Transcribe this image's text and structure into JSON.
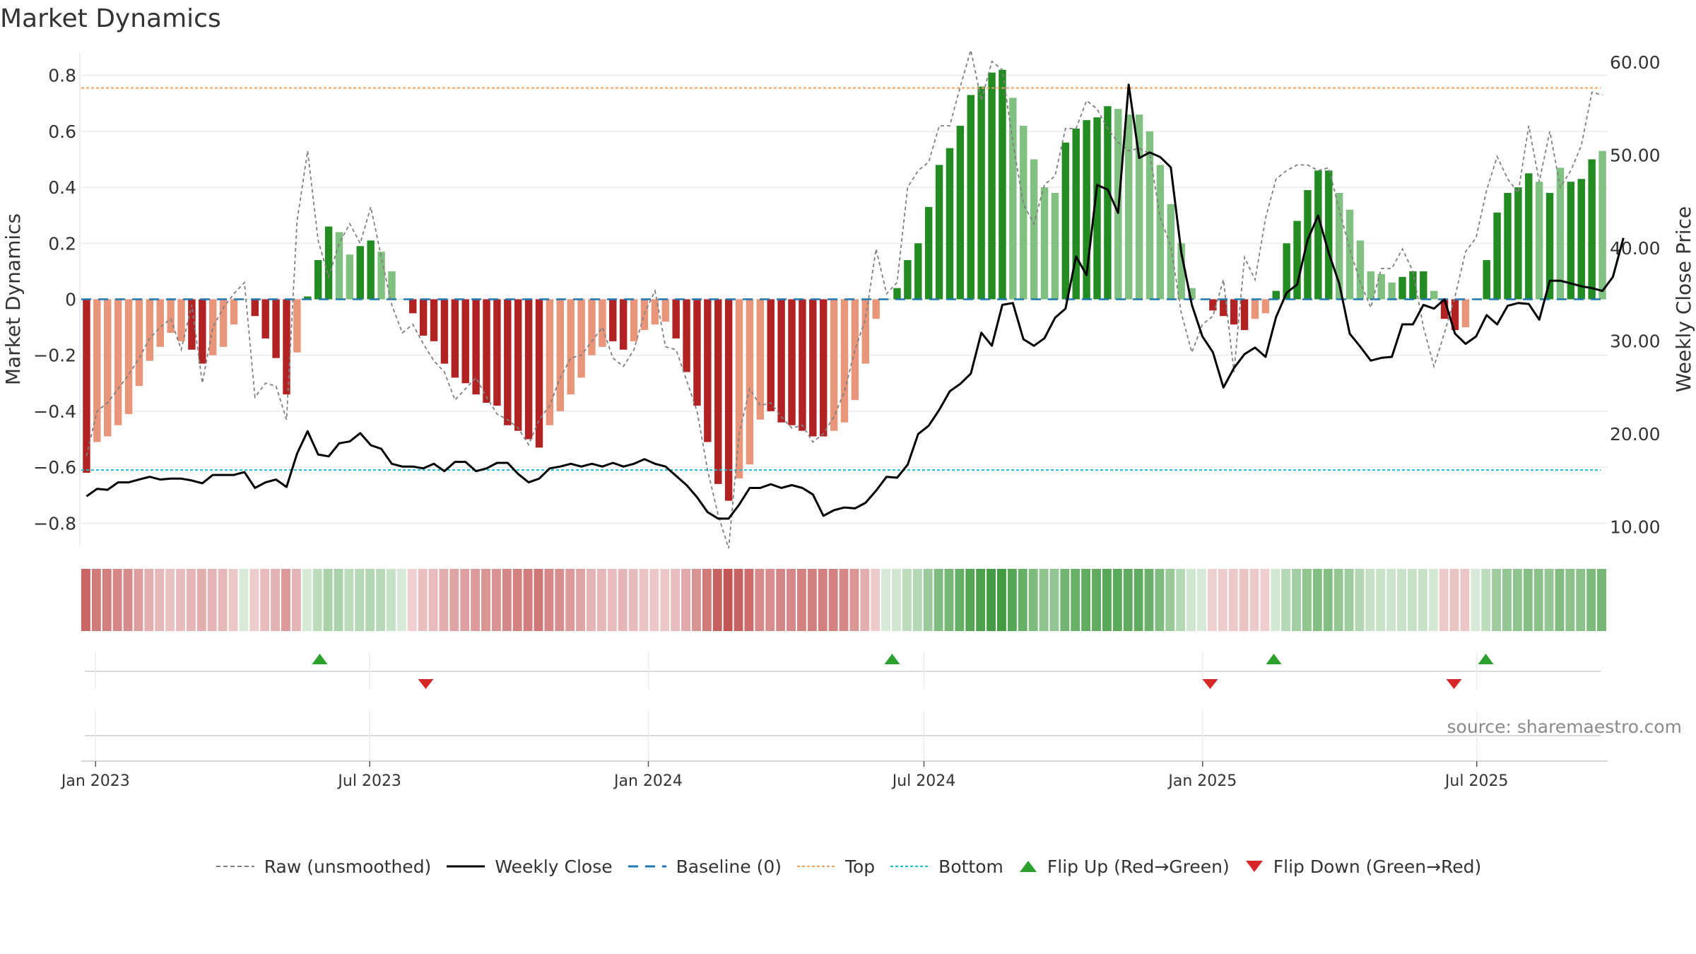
{
  "title": "Market Dynamics",
  "source": "source: sharemaestro.com",
  "colors": {
    "strong_green": "#228b22",
    "light_green": "#80c080",
    "strong_red": "#b22222",
    "light_red": "#e8957a",
    "close_line": "#000000",
    "raw_line": "#808080",
    "baseline": "#1f77b4",
    "top": "#f0a060",
    "bottom": "#17becf",
    "flip_up": "#2ca02c",
    "flip_down": "#d62728"
  },
  "legend": [
    {
      "label": "Raw (unsmoothed)",
      "icon": "dashed-gray-line"
    },
    {
      "label": "Weekly Close",
      "icon": "solid-black-line"
    },
    {
      "label": "Baseline (0)",
      "icon": "dashed-blue-line"
    },
    {
      "label": "Top",
      "icon": "dotted-orange-line"
    },
    {
      "label": "Bottom",
      "icon": "dotted-cyan-line"
    },
    {
      "label": "Flip Up (Red→Green)",
      "icon": "triangle-up-green"
    },
    {
      "label": "Flip Down (Green→Red)",
      "icon": "triangle-down-red"
    }
  ],
  "chart_data": {
    "type": "bar",
    "title": "Market Dynamics",
    "ylabel": "Market Dynamics",
    "y2label": "Weekly Close Price",
    "ylim": [
      -0.88,
      0.88
    ],
    "y2lim": [
      8.0,
      61.0
    ],
    "yticks": [
      {
        "value": 0.8,
        "label": "0.8"
      },
      {
        "value": 0.6,
        "label": "0.6"
      },
      {
        "value": 0.4,
        "label": "0.4"
      },
      {
        "value": 0.2,
        "label": "0.2"
      },
      {
        "value": 0,
        "label": "0"
      },
      {
        "value": -0.2,
        "label": "−0.2"
      },
      {
        "value": -0.4,
        "label": "−0.4"
      },
      {
        "value": -0.6,
        "label": "−0.6"
      },
      {
        "value": -0.8,
        "label": "−0.8"
      }
    ],
    "y2ticks": [
      {
        "value": 60,
        "label": "60.00"
      },
      {
        "value": 50,
        "label": "50.00"
      },
      {
        "value": 40,
        "label": "40.00"
      },
      {
        "value": 30,
        "label": "30.00"
      },
      {
        "value": 20,
        "label": "20.00"
      },
      {
        "value": 10,
        "label": "10.00"
      }
    ],
    "xticks": [
      {
        "date": "2023-01-01",
        "label": "Jan 2023"
      },
      {
        "date": "2023-07-01",
        "label": "Jul 2023"
      },
      {
        "date": "2024-01-01",
        "label": "Jan 2024"
      },
      {
        "date": "2024-07-01",
        "label": "Jul 2024"
      },
      {
        "date": "2025-01-01",
        "label": "Jan 2025"
      },
      {
        "date": "2025-07-01",
        "label": "Jul 2025"
      }
    ],
    "date_range": [
      "2022-12-26",
      "2025-09-22"
    ],
    "top_line": 0.755,
    "bottom_line": -0.61,
    "baseline": 0,
    "series": [
      {
        "name": "Market Dynamics",
        "kind": "bar",
        "values": [
          -0.62,
          -0.51,
          -0.49,
          -0.45,
          -0.41,
          -0.31,
          -0.22,
          -0.17,
          -0.12,
          -0.15,
          -0.18,
          -0.23,
          -0.2,
          -0.17,
          -0.09,
          0,
          -0.06,
          -0.14,
          -0.21,
          -0.34,
          -0.19,
          0.01,
          0.14,
          0.26,
          0.24,
          0.16,
          0.19,
          0.21,
          0.17,
          0.1,
          0,
          -0.05,
          -0.13,
          -0.15,
          -0.23,
          -0.28,
          -0.3,
          -0.34,
          -0.37,
          -0.38,
          -0.45,
          -0.47,
          -0.5,
          -0.53,
          -0.45,
          -0.4,
          -0.34,
          -0.28,
          -0.2,
          -0.17,
          -0.15,
          -0.18,
          -0.15,
          -0.11,
          -0.09,
          -0.08,
          -0.14,
          -0.26,
          -0.38,
          -0.51,
          -0.66,
          -0.72,
          -0.64,
          -0.59,
          -0.43,
          -0.4,
          -0.44,
          -0.45,
          -0.47,
          -0.49,
          -0.49,
          -0.47,
          -0.44,
          -0.36,
          -0.23,
          -0.07,
          0,
          0.04,
          0.14,
          0.2,
          0.33,
          0.48,
          0.54,
          0.62,
          0.73,
          0.76,
          0.81,
          0.82,
          0.72,
          0.62,
          0.5,
          0.4,
          0.38,
          0.56,
          0.61,
          0.64,
          0.65,
          0.69,
          0.68,
          0.66,
          0.66,
          0.6,
          0.48,
          0.34,
          0.2,
          0.04,
          0,
          -0.04,
          -0.06,
          -0.09,
          -0.11,
          -0.07,
          -0.05,
          0.03,
          0.2,
          0.28,
          0.39,
          0.46,
          0.46,
          0.38,
          0.32,
          0.21,
          0.1,
          0.09,
          0.06,
          0.08,
          0.1,
          0.1,
          0.03,
          -0.07,
          -0.11,
          -0.1,
          0,
          0.14,
          0.31,
          0.38,
          0.4,
          0.45,
          0.42,
          0.38,
          0.47,
          0.42,
          0.43,
          0.5,
          0.53
        ],
        "shades": [
          "S",
          "L",
          "L",
          "L",
          "L",
          "L",
          "L",
          "L",
          "L",
          "L",
          "S",
          "S",
          "L",
          "L",
          "L",
          "L",
          "S",
          "S",
          "S",
          "S",
          "L",
          "S",
          "S",
          "S",
          "L",
          "L",
          "S",
          "S",
          "L",
          "L",
          "L",
          "S",
          "S",
          "S",
          "S",
          "S",
          "S",
          "S",
          "S",
          "S",
          "S",
          "S",
          "S",
          "S",
          "L",
          "L",
          "L",
          "L",
          "L",
          "L",
          "S",
          "S",
          "L",
          "L",
          "L",
          "L",
          "S",
          "S",
          "S",
          "S",
          "S",
          "S",
          "L",
          "L",
          "L",
          "S",
          "S",
          "S",
          "S",
          "S",
          "S",
          "L",
          "L",
          "L",
          "L",
          "L",
          "S",
          "S",
          "S",
          "S",
          "S",
          "S",
          "S",
          "S",
          "S",
          "S",
          "S",
          "S",
          "L",
          "L",
          "L",
          "L",
          "L",
          "S",
          "S",
          "S",
          "S",
          "S",
          "L",
          "L",
          "L",
          "L",
          "L",
          "L",
          "L",
          "L",
          "L",
          "S",
          "S",
          "S",
          "S",
          "L",
          "L",
          "S",
          "S",
          "S",
          "S",
          "S",
          "S",
          "L",
          "L",
          "L",
          "L",
          "L",
          "L",
          "S",
          "S",
          "S",
          "L",
          "S",
          "S",
          "L",
          "L",
          "S",
          "S",
          "S",
          "S",
          "S",
          "L",
          "S",
          "L",
          "S",
          "S",
          "S"
        ]
      },
      {
        "name": "Raw (unsmoothed)",
        "kind": "line",
        "values": [
          -0.56,
          -0.4,
          -0.37,
          -0.32,
          -0.27,
          -0.21,
          -0.14,
          -0.1,
          -0.07,
          -0.18,
          -0.02,
          -0.3,
          -0.1,
          -0.03,
          0.02,
          0.06,
          -0.35,
          -0.3,
          -0.31,
          -0.43,
          0.28,
          0.53,
          0.21,
          0.08,
          0.2,
          0.27,
          0.2,
          0.33,
          0.15,
          -0.02,
          -0.12,
          -0.09,
          -0.16,
          -0.22,
          -0.26,
          -0.36,
          -0.32,
          -0.28,
          -0.35,
          -0.41,
          -0.43,
          -0.46,
          -0.52,
          -0.43,
          -0.38,
          -0.28,
          -0.21,
          -0.2,
          -0.15,
          -0.1,
          -0.21,
          -0.24,
          -0.18,
          -0.05,
          0.03,
          -0.17,
          -0.18,
          -0.29,
          -0.4,
          -0.61,
          -0.77,
          -0.89,
          -0.48,
          -0.32,
          -0.38,
          -0.37,
          -0.42,
          -0.46,
          -0.45,
          -0.51,
          -0.48,
          -0.42,
          -0.33,
          -0.18,
          -0.07,
          0.18,
          0.02,
          0.06,
          0.4,
          0.46,
          0.49,
          0.62,
          0.62,
          0.76,
          0.89,
          0.71,
          0.85,
          0.82,
          0.56,
          0.34,
          0.27,
          0.41,
          0.44,
          0.61,
          0.61,
          0.71,
          0.68,
          0.61,
          0.56,
          0.53,
          0.54,
          0.52,
          0.29,
          0.19,
          -0.05,
          -0.19,
          -0.09,
          -0.06,
          0.07,
          -0.26,
          0.15,
          0.07,
          0.29,
          0.43,
          0.46,
          0.48,
          0.48,
          0.46,
          0.47,
          0.32,
          0.18,
          0.06,
          -0.03,
          0.11,
          0.11,
          0.18,
          0.1,
          -0.1,
          -0.24,
          -0.12,
          0.01,
          0.17,
          0.22,
          0.39,
          0.51,
          0.43,
          0.38,
          0.62,
          0.42,
          0.6,
          0.4,
          0.46,
          0.55,
          0.74,
          0.73
        ]
      },
      {
        "name": "Weekly Close",
        "kind": "line",
        "axis": "right",
        "values": [
          13.3,
          14.1,
          14.0,
          14.8,
          14.8,
          15.1,
          15.4,
          15.1,
          15.2,
          15.2,
          15.0,
          14.7,
          15.6,
          15.6,
          15.6,
          15.9,
          14.2,
          14.8,
          15.1,
          14.3,
          17.9,
          20.3,
          17.8,
          17.6,
          19.0,
          19.2,
          20.1,
          18.8,
          18.4,
          16.8,
          16.5,
          16.5,
          16.3,
          16.8,
          16.0,
          17.0,
          17.0,
          16.0,
          16.3,
          16.9,
          16.9,
          15.7,
          14.8,
          15.2,
          16.3,
          16.5,
          16.8,
          16.5,
          16.8,
          16.5,
          16.9,
          16.5,
          16.8,
          17.3,
          16.8,
          16.5,
          15.5,
          14.5,
          13.2,
          11.6,
          10.9,
          10.9,
          12.4,
          14.2,
          14.2,
          14.6,
          14.2,
          14.5,
          14.2,
          13.5,
          11.2,
          11.8,
          12.1,
          12.0,
          12.6,
          13.9,
          15.4,
          15.3,
          16.7,
          20.0,
          20.9,
          22.6,
          24.6,
          25.4,
          26.5,
          30.9,
          29.5,
          33.9,
          34.1,
          30.2,
          29.5,
          30.3,
          32.5,
          33.5,
          39.1,
          37.1,
          46.8,
          46.3,
          43.8,
          57.6,
          49.7,
          50.3,
          49.8,
          48.7,
          39.5,
          33.9,
          30.5,
          28.8,
          25.0,
          27.1,
          28.6,
          29.3,
          28.3,
          32.6,
          35.2,
          36.1,
          40.9,
          43.5,
          39.5,
          36.2,
          30.8,
          29.4,
          27.9,
          28.2,
          28.3,
          31.8,
          31.8,
          33.9,
          33.5,
          34.5,
          30.8,
          29.7,
          30.5,
          32.8,
          31.8,
          33.8,
          34.1,
          34.0,
          32.3,
          36.5,
          36.5,
          36.2,
          35.9,
          35.7,
          35.4,
          36.9,
          41.1
        ]
      }
    ],
    "flips": [
      {
        "type": "up",
        "date": "2023-05-29"
      },
      {
        "type": "down",
        "date": "2023-08-07"
      },
      {
        "type": "up",
        "date": "2024-06-10"
      },
      {
        "type": "down",
        "date": "2025-01-06"
      },
      {
        "type": "up",
        "date": "2025-02-17"
      },
      {
        "type": "down",
        "date": "2025-06-16"
      },
      {
        "type": "up",
        "date": "2025-07-07"
      }
    ]
  }
}
